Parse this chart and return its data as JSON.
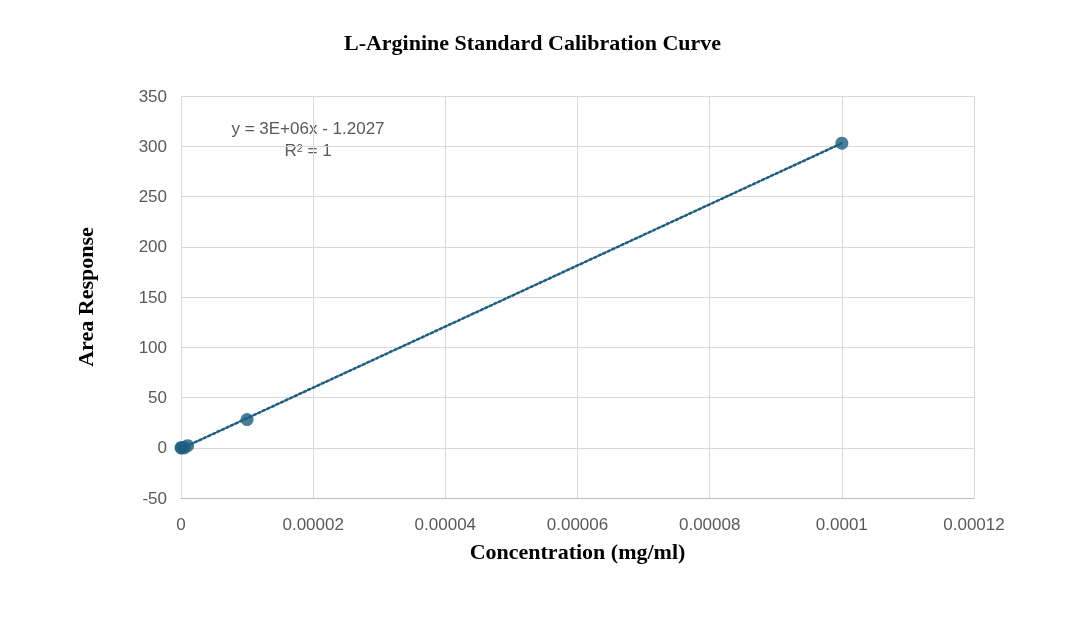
{
  "chart_data": {
    "type": "scatter",
    "title": "L-Arginine Standard Calibration Curve",
    "xlabel": "Concentration (mg/ml)",
    "ylabel": "Area Response",
    "annotations": [
      "y = 3E+06x - 1.2027",
      "R$^{2}$ = 1"
    ],
    "series": [
      {
        "color": "#1b5e80",
        "x": [
          0,
          1e-07,
          5e-07,
          1e-06,
          1e-05,
          0.0001
        ],
        "values": [
          0,
          0,
          0,
          2,
          28,
          303
        ],
        "marker": "circle"
      },
      {
        "type": "line",
        "color": "#1b5e80",
        "x": [
          0,
          0.0001
        ],
        "values": [
          -1,
          303
        ],
        "marker": "none",
        "line_style": "dotted"
      }
    ],
    "xlim": [
      0,
      0.00012
    ],
    "xticks": [
      0,
      {
        "value": 2e-05,
        "label": "0.00002"
      },
      {
        "value": 4e-05,
        "label": "0.00004"
      },
      {
        "value": 6e-05,
        "label": "0.00006"
      },
      {
        "value": 8e-05,
        "label": "0.00008"
      },
      0.0001,
      0.00012
    ],
    "ylim": [
      -50,
      350
    ],
    "yticks": [
      -50,
      0,
      50,
      100,
      150,
      200,
      250,
      300,
      350
    ],
    "grid": true
  }
}
